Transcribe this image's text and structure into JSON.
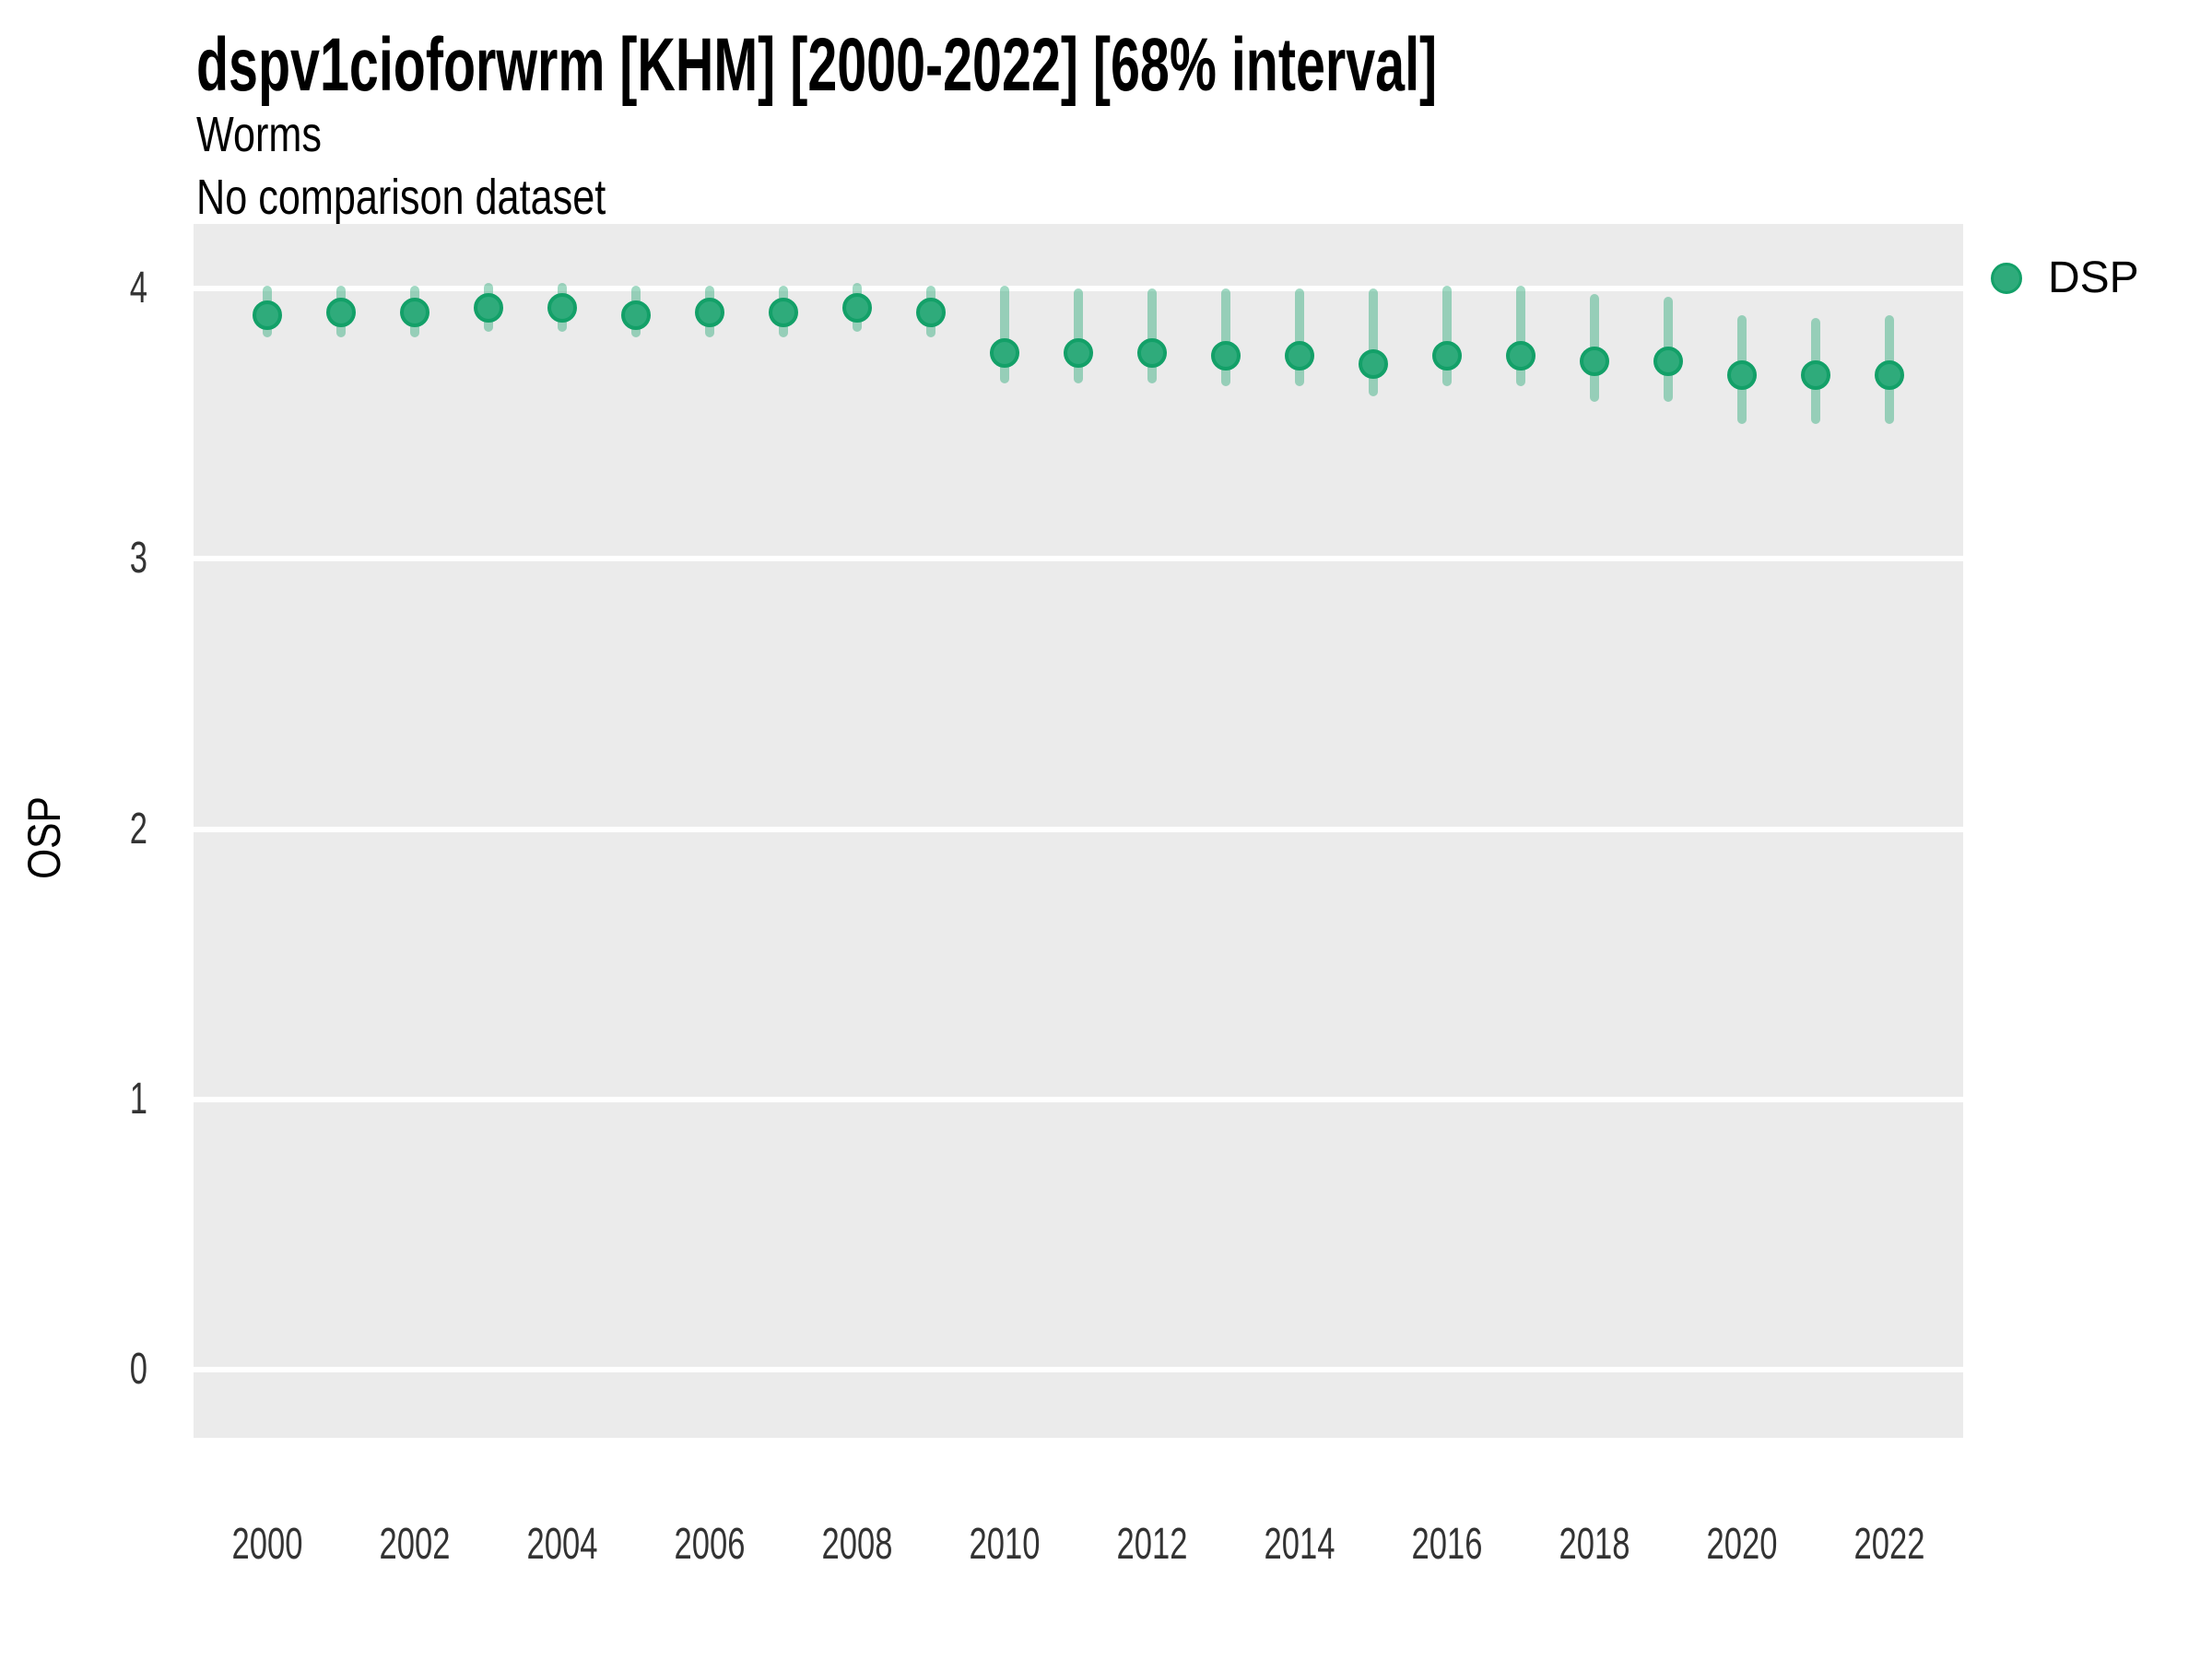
{
  "header": {
    "title": "dspv1cioforwrm [KHM] [2000-2022] [68% interval]",
    "subtitle": "Worms",
    "comparison_note": "No comparison dataset"
  },
  "legend": {
    "items": [
      {
        "label": "DSP"
      }
    ]
  },
  "axes": {
    "y_title": "OSP",
    "y_ticks": [
      4,
      3,
      2,
      1,
      0
    ],
    "x_ticks": [
      2000,
      2002,
      2004,
      2006,
      2008,
      2010,
      2012,
      2014,
      2016,
      2018,
      2020,
      2022
    ]
  },
  "colors": {
    "panel_background": "#ebebeb",
    "gridline": "#ffffff",
    "point_fill": "#2fab7b",
    "point_stroke": "#13a068",
    "interval_bar": "rgba(47,171,122,0.45)",
    "tick_text": "#333333"
  },
  "chart_data": {
    "type": "scatter",
    "subtype": "pointrange",
    "title": "dspv1cioforwrm [KHM] [2000-2022] [68% interval]",
    "subtitle": "Worms",
    "note": "No comparison dataset",
    "xlabel": "",
    "ylabel": "OSP",
    "interval": "68%",
    "xlim": [
      1999,
      2023
    ],
    "ylim": [
      -0.25,
      4.26
    ],
    "grid": "major-horizontal",
    "legend_position": "right",
    "series": [
      {
        "name": "DSP",
        "points": [
          {
            "year": 2000,
            "value": 3.9,
            "lo": 3.82,
            "hi": 4.01
          },
          {
            "year": 2001,
            "value": 3.91,
            "lo": 3.82,
            "hi": 4.01
          },
          {
            "year": 2002,
            "value": 3.91,
            "lo": 3.82,
            "hi": 4.01
          },
          {
            "year": 2003,
            "value": 3.93,
            "lo": 3.84,
            "hi": 4.02
          },
          {
            "year": 2004,
            "value": 3.93,
            "lo": 3.84,
            "hi": 4.02
          },
          {
            "year": 2005,
            "value": 3.9,
            "lo": 3.82,
            "hi": 4.01
          },
          {
            "year": 2006,
            "value": 3.91,
            "lo": 3.82,
            "hi": 4.01
          },
          {
            "year": 2007,
            "value": 3.91,
            "lo": 3.82,
            "hi": 4.01
          },
          {
            "year": 2008,
            "value": 3.93,
            "lo": 3.84,
            "hi": 4.02
          },
          {
            "year": 2009,
            "value": 3.91,
            "lo": 3.82,
            "hi": 4.01
          },
          {
            "year": 2010,
            "value": 3.76,
            "lo": 3.65,
            "hi": 4.01
          },
          {
            "year": 2011,
            "value": 3.76,
            "lo": 3.65,
            "hi": 4.0
          },
          {
            "year": 2012,
            "value": 3.76,
            "lo": 3.65,
            "hi": 4.0
          },
          {
            "year": 2013,
            "value": 3.75,
            "lo": 3.64,
            "hi": 4.0
          },
          {
            "year": 2014,
            "value": 3.75,
            "lo": 3.64,
            "hi": 4.0
          },
          {
            "year": 2015,
            "value": 3.72,
            "lo": 3.6,
            "hi": 4.0
          },
          {
            "year": 2016,
            "value": 3.75,
            "lo": 3.64,
            "hi": 4.01
          },
          {
            "year": 2017,
            "value": 3.75,
            "lo": 3.64,
            "hi": 4.01
          },
          {
            "year": 2018,
            "value": 3.73,
            "lo": 3.58,
            "hi": 3.98
          },
          {
            "year": 2019,
            "value": 3.73,
            "lo": 3.58,
            "hi": 3.97
          },
          {
            "year": 2020,
            "value": 3.68,
            "lo": 3.5,
            "hi": 3.9
          },
          {
            "year": 2021,
            "value": 3.68,
            "lo": 3.5,
            "hi": 3.89
          },
          {
            "year": 2022,
            "value": 3.68,
            "lo": 3.5,
            "hi": 3.9
          }
        ]
      }
    ]
  }
}
